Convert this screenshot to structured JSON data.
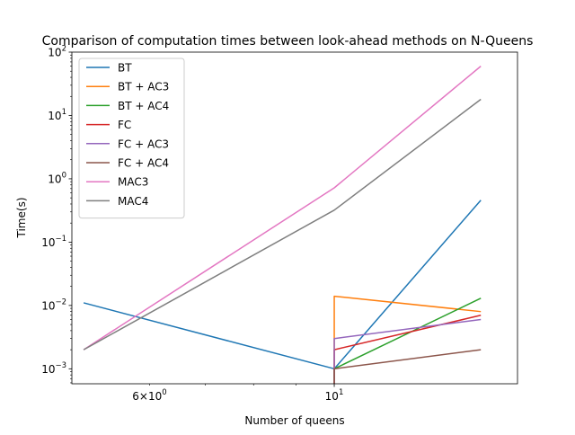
{
  "chart_data": {
    "type": "line",
    "title": "Comparison of computation times between look-ahead methods on N-Queens",
    "xlabel": "Number of queens",
    "ylabel": "Time(s)",
    "xscale": "log",
    "yscale": "log",
    "xlim": [
      4.84,
      16.6
    ],
    "ylim": [
      0.00058,
      100
    ],
    "grid": false,
    "legend_position": "top-left",
    "x_major_ticks": [
      {
        "value": 10,
        "label": "10^1"
      }
    ],
    "x_minor_ticks": [
      {
        "value": 6,
        "label": "6×10^0"
      },
      7,
      8,
      9
    ],
    "y_major_ticks": [
      {
        "value": 0.001,
        "label": "10^-3"
      },
      {
        "value": 0.01,
        "label": "10^-2"
      },
      {
        "value": 0.1,
        "label": "10^-1"
      },
      {
        "value": 1,
        "label": "10^0"
      },
      {
        "value": 10,
        "label": "10^1"
      },
      {
        "value": 100,
        "label": "10^2"
      }
    ],
    "series": [
      {
        "name": "BT",
        "color": "#1f77b4",
        "x": [
          5,
          10,
          15
        ],
        "y": [
          0.011,
          0.001,
          0.46
        ]
      },
      {
        "name": "BT + AC3",
        "color": "#ff7f0e",
        "x": [
          10,
          10,
          15
        ],
        "y": [
          0.00058,
          0.014,
          0.008
        ]
      },
      {
        "name": "BT + AC4",
        "color": "#2ca02c",
        "x": [
          10,
          10,
          15
        ],
        "y": [
          0.00058,
          0.001,
          0.013
        ]
      },
      {
        "name": "FC",
        "color": "#d62728",
        "x": [
          10,
          10,
          15
        ],
        "y": [
          0.00058,
          0.002,
          0.007
        ]
      },
      {
        "name": "FC + AC3",
        "color": "#9467bd",
        "x": [
          10,
          10,
          15
        ],
        "y": [
          0.00058,
          0.003,
          0.006
        ]
      },
      {
        "name": "FC + AC4",
        "color": "#8c564b",
        "x": [
          10,
          10,
          15
        ],
        "y": [
          0.00058,
          0.001,
          0.002
        ]
      },
      {
        "name": "MAC3",
        "color": "#e377c2",
        "x": [
          5,
          10,
          15
        ],
        "y": [
          0.002,
          0.72,
          60
        ]
      },
      {
        "name": "MAC4",
        "color": "#7f7f7f",
        "x": [
          5,
          10,
          15
        ],
        "y": [
          0.002,
          0.32,
          18
        ]
      }
    ]
  }
}
